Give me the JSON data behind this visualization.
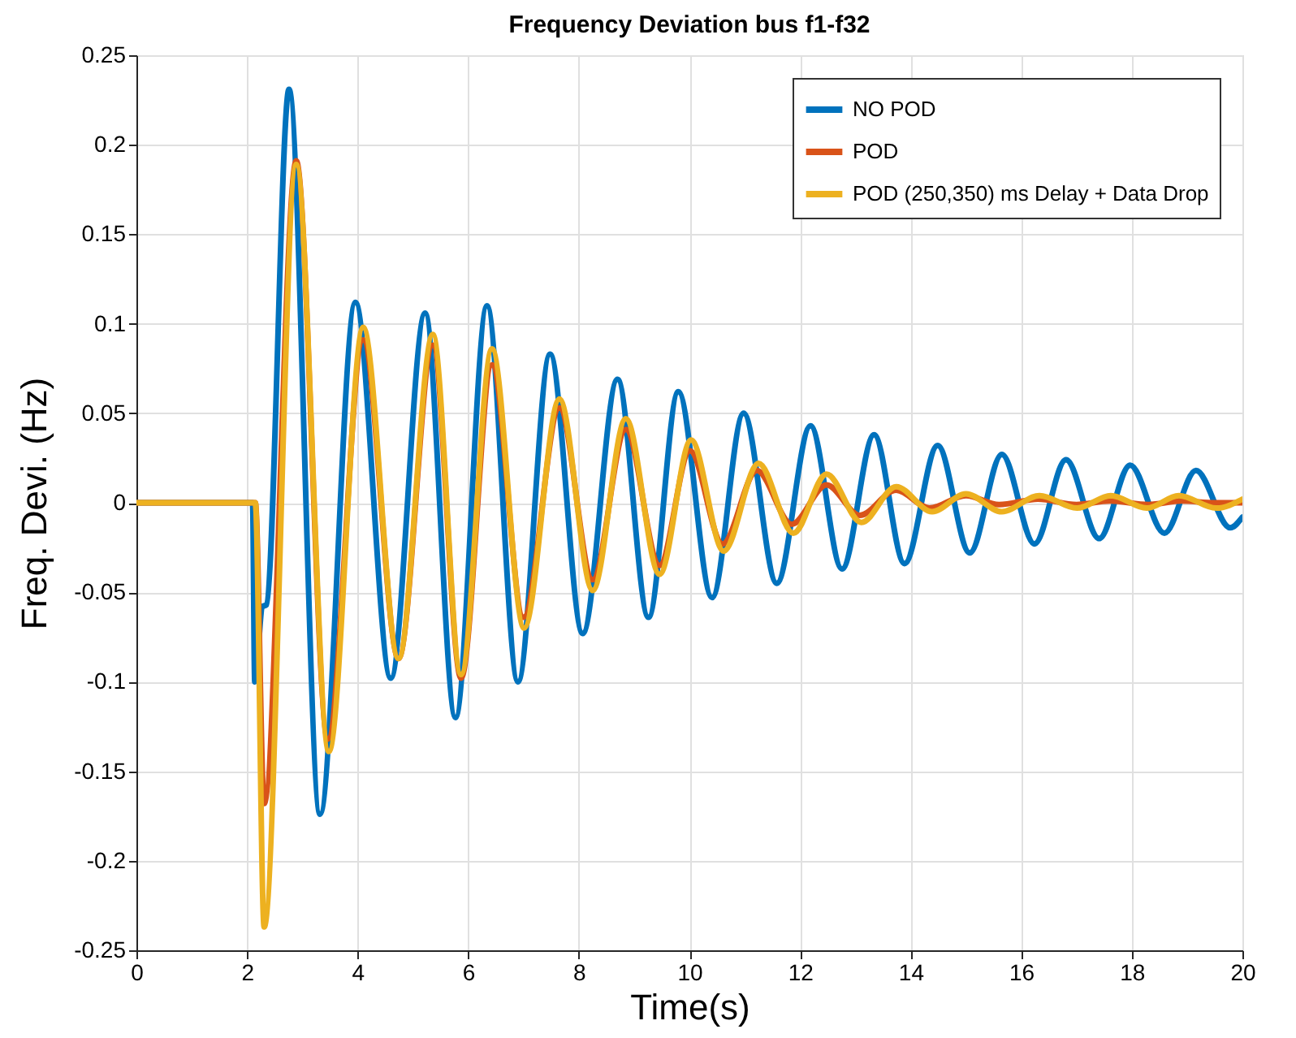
{
  "chart_data": {
    "type": "line",
    "title": "Frequency Deviation bus f1-f32",
    "xlabel": "Time(s)",
    "ylabel": "Freq. Devi. (Hz)",
    "xlim": [
      0,
      20
    ],
    "xticks": [
      0,
      2,
      4,
      6,
      8,
      10,
      12,
      14,
      16,
      18,
      20
    ],
    "ylim": [
      -0.25,
      0.25
    ],
    "yticks": [
      -0.25,
      -0.2,
      -0.15,
      -0.1,
      -0.05,
      0,
      0.05,
      0.1,
      0.15,
      0.2,
      0.25
    ],
    "grid": true,
    "legend": "top right",
    "line_style": "solid",
    "marker": "none",
    "series": [
      {
        "name": "NO POD",
        "color": "#0072bd",
        "x": [
          0,
          2.1,
          2.14,
          2.28,
          2.35,
          2.76,
          3.32,
          3.96,
          4.6,
          5.22,
          5.77,
          6.34,
          6.9,
          7.48,
          8.07,
          8.7,
          9.26,
          9.8,
          10.41,
          10.98,
          11.58,
          12.19,
          12.76,
          13.34,
          13.89,
          14.49,
          15.07,
          15.65,
          16.24,
          16.81,
          17.41,
          17.97,
          18.59,
          19.16,
          19.78,
          20
        ],
        "values": [
          0,
          0,
          -0.1,
          -0.058,
          -0.057,
          0.231,
          -0.174,
          0.112,
          -0.098,
          0.106,
          -0.12,
          0.11,
          -0.1,
          0.083,
          -0.073,
          0.069,
          -0.064,
          0.062,
          -0.053,
          0.05,
          -0.045,
          0.043,
          -0.037,
          0.038,
          -0.034,
          0.032,
          -0.028,
          0.027,
          -0.023,
          0.024,
          -0.02,
          0.021,
          -0.017,
          0.018,
          -0.014,
          -0.008
        ]
      },
      {
        "name": "POD",
        "color": "#d95319",
        "x": [
          0,
          2.15,
          2.31,
          2.89,
          3.46,
          4.1,
          4.74,
          5.36,
          5.87,
          6.43,
          7.0,
          7.65,
          8.25,
          8.85,
          9.46,
          10.01,
          10.6,
          11.22,
          11.85,
          12.48,
          13.08,
          13.74,
          14.34,
          15.0,
          15.6,
          16.3,
          17.0,
          17.6,
          18.3,
          18.9,
          19.5,
          20
        ],
        "values": [
          0,
          0,
          -0.168,
          0.191,
          -0.132,
          0.091,
          -0.087,
          0.088,
          -0.098,
          0.077,
          -0.064,
          0.053,
          -0.043,
          0.041,
          -0.035,
          0.029,
          -0.023,
          0.018,
          -0.012,
          0.01,
          -0.007,
          0.007,
          -0.003,
          0.004,
          -0.001,
          0.002,
          -0.001,
          0.001,
          -0.001,
          0.001,
          0,
          0
        ]
      },
      {
        "name": "POD (250,350) ms Delay + Data Drop",
        "color": "#edb120",
        "x": [
          0,
          2.15,
          2.31,
          2.89,
          3.48,
          4.1,
          4.74,
          5.36,
          5.87,
          6.43,
          7.01,
          7.65,
          8.25,
          8.85,
          9.46,
          10.03,
          10.62,
          11.25,
          11.88,
          12.48,
          13.11,
          13.74,
          14.39,
          15.0,
          15.65,
          16.33,
          17.01,
          17.62,
          18.27,
          18.85,
          19.53,
          20
        ],
        "values": [
          0,
          0,
          -0.237,
          0.189,
          -0.139,
          0.098,
          -0.087,
          0.094,
          -0.096,
          0.086,
          -0.07,
          0.058,
          -0.049,
          0.047,
          -0.04,
          0.035,
          -0.027,
          0.022,
          -0.017,
          0.016,
          -0.011,
          0.009,
          -0.005,
          0.005,
          -0.005,
          0.004,
          -0.003,
          0.004,
          -0.003,
          0.004,
          -0.003,
          0.002
        ]
      }
    ]
  }
}
